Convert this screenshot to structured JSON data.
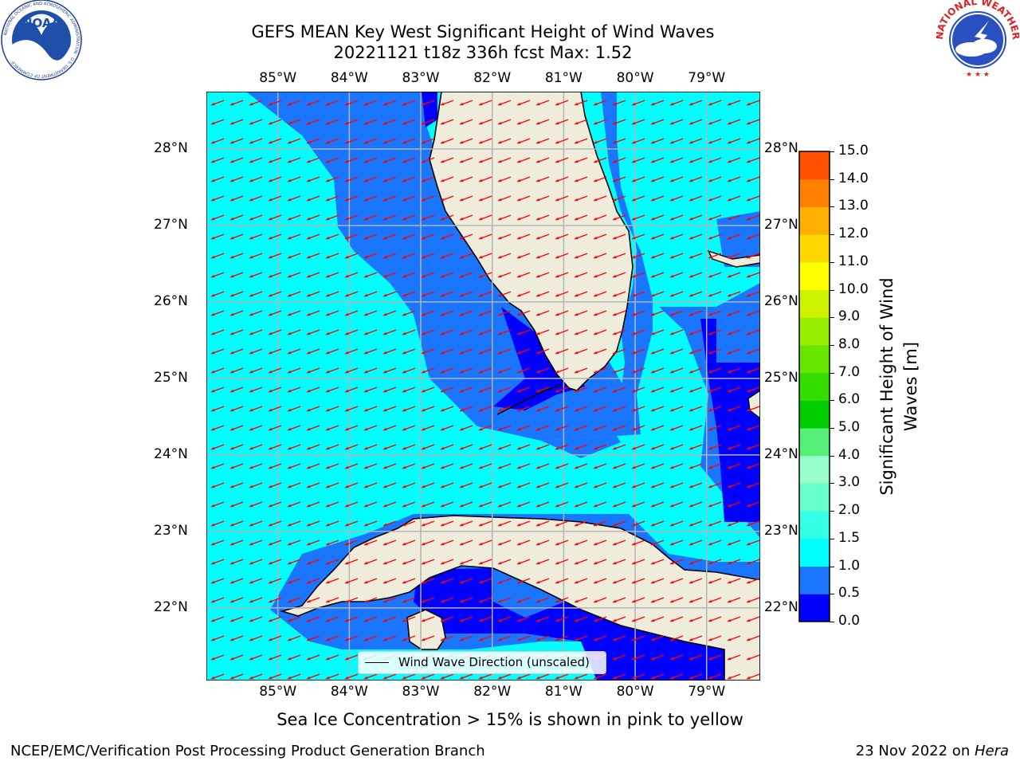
{
  "title": {
    "line1": "GEFS MEAN Key West Significant Height of Wind Waves",
    "line2": "20221121 t18z 336h fcst   Max: 1.52"
  },
  "map": {
    "lon_ticks": [
      "85°W",
      "84°W",
      "83°W",
      "82°W",
      "81°W",
      "80°W",
      "79°W"
    ],
    "lat_ticks": [
      "28°N",
      "27°N",
      "26°N",
      "25°N",
      "24°N",
      "23°N",
      "22°N"
    ],
    "lon_range": [
      -86.0,
      -78.25
    ],
    "lat_range": [
      21.05,
      28.75
    ],
    "land_color": "#efecdc",
    "grid_color": "#b4b4b4",
    "arrow_color": "#ff0000",
    "wind_direction_deg_from_north": 250,
    "legend": {
      "label": "Wind Wave Direction (unscaled)"
    }
  },
  "colorbar": {
    "label": "Significant Height of Wind Waves [m]",
    "tick_labels": [
      "0.0",
      "0.5",
      "1.0",
      "1.5",
      "2.0",
      "3.0",
      "4.0",
      "5.0",
      "6.0",
      "7.0",
      "8.0",
      "9.0",
      "10.0",
      "11.0",
      "12.0",
      "13.0",
      "14.0",
      "15.0"
    ],
    "colors": [
      "#0000ff",
      "#1a76ff",
      "#00ffff",
      "#33ffe6",
      "#66ffcc",
      "#99ffcc",
      "#55ee77",
      "#00cc00",
      "#33dd00",
      "#66e600",
      "#99ee00",
      "#ccf200",
      "#ffff00",
      "#ffd700",
      "#ffb000",
      "#ff8000",
      "#ff5000",
      "#ff2000",
      "#ff0000"
    ]
  },
  "sea_ice_note": "Sea Ice Concentration > 15% is shown in pink to yellow",
  "footer": {
    "left": "NCEP/EMC/Verification Post Processing Product Generation Branch",
    "date": "23 Nov 2022 on ",
    "machine": "Hera"
  },
  "logos": {
    "noaa": "NOAA",
    "nws_ring": "NATIONAL WEATHER SERVICE",
    "noaa_ring": "NATIONAL OCEANIC AND ATMOSPHERIC ADMINISTRATION · U.S. DEPARTMENT OF COMMERCE"
  }
}
